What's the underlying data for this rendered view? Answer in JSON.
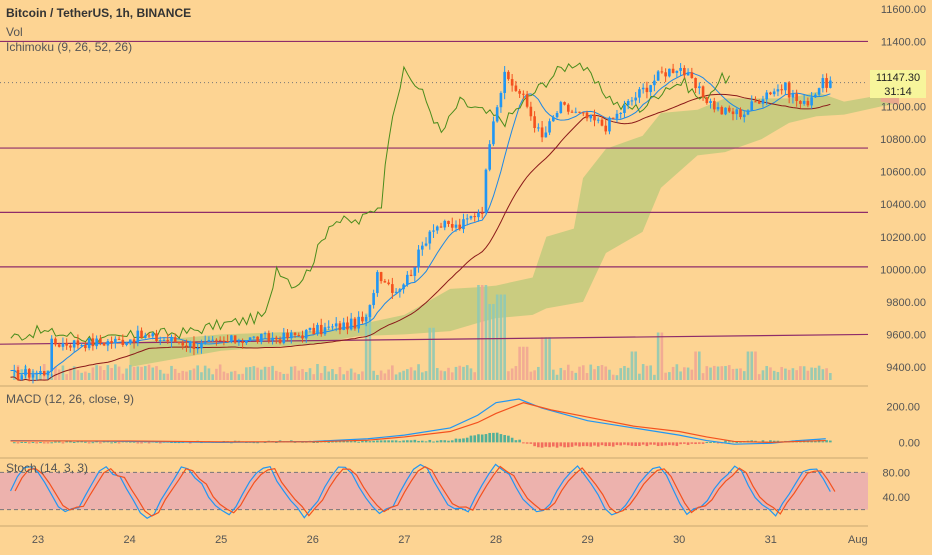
{
  "header": {
    "title": "Bitcoin / TetherUS, 1h, BINANCE",
    "vol_label": "Vol",
    "ichimoku_label": "Ichimoku (9, 26, 52, 26)",
    "macd_label": "MACD (12, 26, close, 9)",
    "stoch_label": "Stoch (14, 3, 3)"
  },
  "price_badge": {
    "price": "11147.30",
    "countdown": "31:14"
  },
  "colors": {
    "background": "#fdd493",
    "up": "#2196f3",
    "down": "#f4511e",
    "hline": "#8e2c6a",
    "kumo": "#b8c97a",
    "chikou": "#4a8c1c",
    "kijun": "#8b1a1a",
    "tenkan": "#1e88e5",
    "macd": "#2196f3",
    "signal": "#f4511e",
    "stoch_band": "#e8a9b4"
  },
  "chart_data": [
    {
      "type": "candlestick",
      "title": "Bitcoin / TetherUS, 1h, BINANCE",
      "x_tick_labels": [
        "23",
        "24",
        "25",
        "26",
        "27",
        "28",
        "29",
        "30",
        "31",
        "Aug"
      ],
      "y_tick_labels": [
        "9400.00",
        "9600.00",
        "9800.00",
        "10000.00",
        "10200.00",
        "10400.00",
        "10600.00",
        "10800.00",
        "11000.00",
        "11200.00",
        "11400.00",
        "11600.00"
      ],
      "ylim": [
        9320,
        11630
      ],
      "last_price": 11147.3,
      "horizontal_levels": [
        11400,
        10745,
        10350,
        10015
      ],
      "trendline": {
        "from_price": 9540,
        "to_price": 9600
      },
      "candle_anchors": [
        {
          "day": 22.7,
          "price": 9350
        },
        {
          "day": 23.1,
          "price": 9370
        },
        {
          "day": 23.15,
          "price": 9545
        },
        {
          "day": 23.6,
          "price": 9550
        },
        {
          "day": 23.9,
          "price": 9560
        },
        {
          "day": 24.1,
          "price": 9590
        },
        {
          "day": 24.5,
          "price": 9560
        },
        {
          "day": 24.8,
          "price": 9530
        },
        {
          "day": 25.2,
          "price": 9570
        },
        {
          "day": 25.7,
          "price": 9580
        },
        {
          "day": 26.0,
          "price": 9620
        },
        {
          "day": 26.4,
          "price": 9660
        },
        {
          "day": 26.6,
          "price": 9690
        },
        {
          "day": 26.7,
          "price": 9990
        },
        {
          "day": 26.9,
          "price": 9870
        },
        {
          "day": 27.05,
          "price": 9960
        },
        {
          "day": 27.3,
          "price": 10270
        },
        {
          "day": 27.6,
          "price": 10260
        },
        {
          "day": 27.85,
          "price": 10380
        },
        {
          "day": 27.95,
          "price": 10900
        },
        {
          "day": 28.1,
          "price": 11190
        },
        {
          "day": 28.3,
          "price": 11050
        },
        {
          "day": 28.5,
          "price": 10800
        },
        {
          "day": 28.7,
          "price": 11000
        },
        {
          "day": 28.9,
          "price": 10950
        },
        {
          "day": 29.2,
          "price": 10880
        },
        {
          "day": 29.5,
          "price": 11050
        },
        {
          "day": 29.8,
          "price": 11200
        },
        {
          "day": 30.0,
          "price": 11250
        },
        {
          "day": 30.2,
          "price": 11100
        },
        {
          "day": 30.45,
          "price": 10970
        },
        {
          "day": 30.7,
          "price": 10960
        },
        {
          "day": 30.95,
          "price": 11090
        },
        {
          "day": 31.15,
          "price": 11120
        },
        {
          "day": 31.35,
          "price": 11000
        },
        {
          "day": 31.55,
          "price": 11140
        },
        {
          "day": 31.65,
          "price": 11147
        }
      ],
      "kumo_anchors": [
        {
          "day": 24.0,
          "top": 9550,
          "bottom": 9400
        },
        {
          "day": 25.0,
          "top": 9600,
          "bottom": 9500
        },
        {
          "day": 26.0,
          "top": 9620,
          "bottom": 9540
        },
        {
          "day": 26.5,
          "top": 9660,
          "bottom": 9590
        },
        {
          "day": 27.0,
          "top": 9720,
          "bottom": 9600
        },
        {
          "day": 27.5,
          "top": 9880,
          "bottom": 9620
        },
        {
          "day": 27.8,
          "top": 9890,
          "bottom": 9670
        },
        {
          "day": 28.0,
          "top": 9900,
          "bottom": 9700
        },
        {
          "day": 28.4,
          "top": 9950,
          "bottom": 9720
        },
        {
          "day": 28.55,
          "top": 10200,
          "bottom": 9760
        },
        {
          "day": 28.85,
          "top": 10250,
          "bottom": 9790
        },
        {
          "day": 28.95,
          "top": 10560,
          "bottom": 9800
        },
        {
          "day": 29.2,
          "top": 10740,
          "bottom": 10100
        },
        {
          "day": 29.6,
          "top": 10820,
          "bottom": 10230
        },
        {
          "day": 29.8,
          "top": 10960,
          "bottom": 10500
        },
        {
          "day": 30.2,
          "top": 10980,
          "bottom": 10700
        },
        {
          "day": 30.5,
          "top": 11050,
          "bottom": 10720
        },
        {
          "day": 30.9,
          "top": 11050,
          "bottom": 10800
        },
        {
          "day": 31.2,
          "top": 11050,
          "bottom": 10900
        },
        {
          "day": 31.5,
          "top": 11090,
          "bottom": 10940
        },
        {
          "day": 31.8,
          "top": 11030,
          "bottom": 10950
        },
        {
          "day": 32.2,
          "top": 11070,
          "bottom": 11000
        },
        {
          "day": 32.4,
          "top": 11060,
          "bottom": 11020
        }
      ]
    },
    {
      "type": "bar",
      "title": "Vol",
      "x_tick_labels": [
        "23",
        "24",
        "25",
        "26",
        "27",
        "28",
        "29",
        "30",
        "31",
        "Aug"
      ],
      "spikes": [
        {
          "day": 26.6,
          "level": 0.7
        },
        {
          "day": 27.3,
          "level": 0.55
        },
        {
          "day": 27.85,
          "level": 1.0
        },
        {
          "day": 27.95,
          "level": 0.8
        },
        {
          "day": 28.05,
          "level": 0.9
        },
        {
          "day": 28.3,
          "level": 0.35
        },
        {
          "day": 28.55,
          "level": 0.45
        },
        {
          "day": 29.5,
          "level": 0.3
        },
        {
          "day": 29.8,
          "level": 0.5
        },
        {
          "day": 30.2,
          "level": 0.3
        },
        {
          "day": 30.8,
          "level": 0.3
        }
      ]
    },
    {
      "type": "line",
      "title": "MACD (12, 26, close, 9)",
      "y_tick_labels": [
        "0.00",
        "200.00"
      ],
      "ylim": [
        -70,
        290
      ],
      "series": [
        {
          "points": [
            [
              22.7,
              10
            ],
            [
              24.0,
              5
            ],
            [
              25.0,
              0
            ],
            [
              26.0,
              5
            ],
            [
              26.6,
              20
            ],
            [
              27.0,
              40
            ],
            [
              27.5,
              80
            ],
            [
              27.8,
              150
            ],
            [
              28.0,
              220
            ],
            [
              28.25,
              240
            ],
            [
              28.5,
              190
            ],
            [
              29.0,
              120
            ],
            [
              29.5,
              80
            ],
            [
              30.0,
              40
            ],
            [
              30.3,
              10
            ],
            [
              30.6,
              -10
            ],
            [
              31.0,
              -5
            ],
            [
              31.3,
              10
            ],
            [
              31.6,
              20
            ]
          ]
        },
        {
          "points": [
            [
              22.7,
              8
            ],
            [
              24.0,
              8
            ],
            [
              25.0,
              3
            ],
            [
              26.0,
              3
            ],
            [
              26.6,
              12
            ],
            [
              27.0,
              30
            ],
            [
              27.5,
              60
            ],
            [
              27.8,
              110
            ],
            [
              28.0,
              160
            ],
            [
              28.3,
              220
            ],
            [
              28.6,
              180
            ],
            [
              29.0,
              140
            ],
            [
              29.5,
              90
            ],
            [
              30.0,
              60
            ],
            [
              30.3,
              30
            ],
            [
              30.6,
              5
            ],
            [
              31.0,
              0
            ],
            [
              31.3,
              5
            ],
            [
              31.6,
              10
            ]
          ]
        }
      ]
    },
    {
      "type": "line",
      "title": "Stoch (14, 3, 3)",
      "y_tick_labels": [
        "40.00",
        "80.00"
      ],
      "ylim": [
        0,
        100
      ],
      "band": [
        20,
        80
      ]
    }
  ]
}
